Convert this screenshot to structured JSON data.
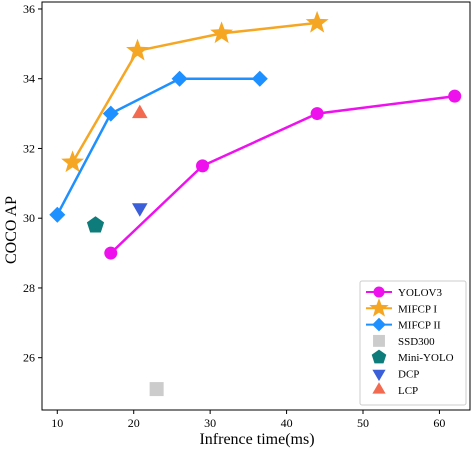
{
  "chart_data": {
    "type": "line",
    "xlabel": "Infrence time(ms)",
    "ylabel": "COCO AP",
    "xlim": [
      8,
      64
    ],
    "ylim": [
      24.5,
      36.2
    ],
    "xticks": [
      10,
      20,
      30,
      40,
      50,
      60
    ],
    "yticks": [
      26,
      28,
      30,
      32,
      34,
      36
    ],
    "grid": false,
    "legend_position": "bottom-right",
    "series": [
      {
        "name": "YOLOV3",
        "marker": "circle",
        "color": "#ee11ee",
        "line": true,
        "points": [
          [
            17,
            29.0
          ],
          [
            29,
            31.5
          ],
          [
            44,
            33.0
          ],
          [
            62,
            33.5
          ]
        ]
      },
      {
        "name": "MIFCP I",
        "marker": "star",
        "color": "#f5a623",
        "line": true,
        "points": [
          [
            12,
            31.6
          ],
          [
            20.5,
            34.8
          ],
          [
            31.5,
            35.3
          ],
          [
            44,
            35.6
          ]
        ]
      },
      {
        "name": "MIFCP II",
        "marker": "diamond",
        "color": "#1e90ff",
        "line": true,
        "points": [
          [
            10,
            30.1
          ],
          [
            17,
            33.0
          ],
          [
            26,
            34.0
          ],
          [
            36.5,
            34.0
          ]
        ]
      },
      {
        "name": "SSD300",
        "marker": "square",
        "color": "#cccccc",
        "line": false,
        "points": [
          [
            23,
            25.1
          ]
        ]
      },
      {
        "name": "Mini-YOLO",
        "marker": "pentagon",
        "color": "#0e7c7b",
        "line": false,
        "points": [
          [
            15,
            29.8
          ]
        ]
      },
      {
        "name": "DCP",
        "marker": "triangle-down",
        "color": "#3a5fd9",
        "line": false,
        "points": [
          [
            20.8,
            30.3
          ]
        ]
      },
      {
        "name": "LCP",
        "marker": "triangle-up",
        "color": "#f26b50",
        "line": false,
        "points": [
          [
            20.8,
            33.0
          ]
        ]
      }
    ]
  }
}
